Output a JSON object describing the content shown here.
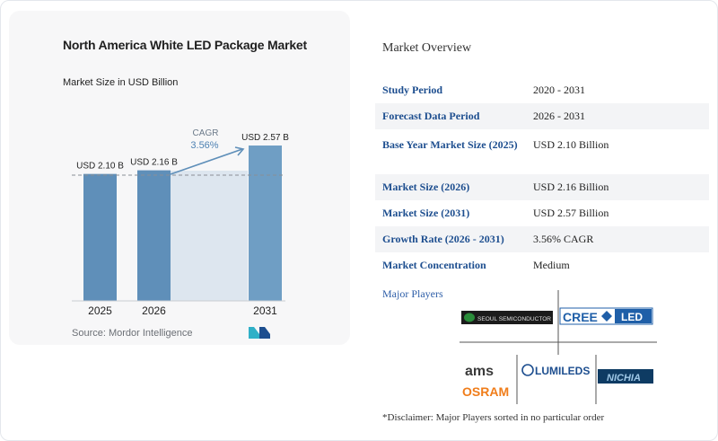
{
  "chart_data": {
    "type": "bar",
    "title": "North America White LED Package Market",
    "subtitle": "Market Size in USD Billion",
    "categories": [
      "2025",
      "2026",
      "2031"
    ],
    "values": [
      2.1,
      2.16,
      2.57
    ],
    "value_labels": [
      "USD 2.10 B",
      "USD 2.16 B",
      "USD 2.57 B"
    ],
    "cagr_label": "CAGR",
    "cagr_value": "3.56%",
    "bar_color": "#5f8fb9",
    "bar_highlight_color": "#6f9ec4",
    "forecast_band_color": "#dde6ef",
    "ylim": [
      0,
      2.6
    ]
  },
  "source_text": "Source: Mordor Intelligence",
  "overview": {
    "title": "Market Overview",
    "rows": [
      {
        "label": "Study Period",
        "value": "2020 - 2031"
      },
      {
        "label": "Forecast Data Period",
        "value": "2026 - 2031"
      },
      {
        "label": "Base Year Market Size (2025)",
        "value": "USD 2.10 Billion"
      },
      {
        "label": "Market Size (2026)",
        "value": "USD 2.16 Billion"
      },
      {
        "label": "Market Size (2031)",
        "value": "USD 2.57 Billion"
      },
      {
        "label": "Growth Rate (2026 - 2031)",
        "value": "3.56% CAGR"
      },
      {
        "label": "Market Concentration",
        "value": "Medium"
      }
    ]
  },
  "players": {
    "label": "Major Players",
    "logos": [
      "SEOUL SEMICONDUCTOR",
      "CREE",
      "LED",
      "ams",
      "OSRAM",
      "LUMILEDS",
      "NICHIA"
    ],
    "disclaimer": "*Disclaimer: Major Players sorted in no particular order"
  },
  "colors": {
    "accent_blue": "#1d4e8f",
    "cree_blue": "#1f5fa8",
    "osram_orange": "#f07d1a"
  }
}
